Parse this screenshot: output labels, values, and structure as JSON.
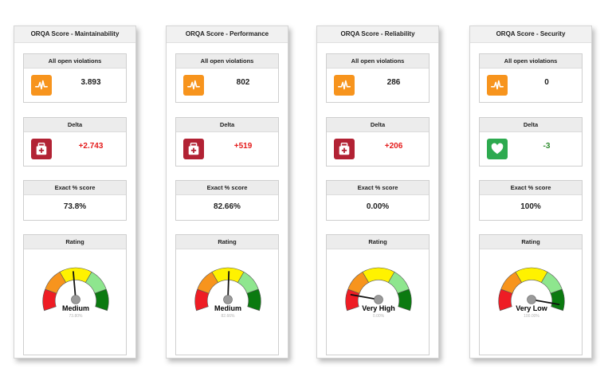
{
  "colors": {
    "orange": "#f7941d",
    "crimson": "#b22234",
    "green": "#2daa4f",
    "delta_bad": "#e41b1b",
    "delta_good": "#2e8b2e",
    "needle": "#111111",
    "faint": "#b4b4b4"
  },
  "panels": [
    {
      "title": "ORQA Score - Maintainability",
      "violations_label": "All open violations",
      "violations_value": "3.893",
      "violations_icon": "pulse-icon",
      "delta_label": "Delta",
      "delta_value": "+2.743",
      "delta_icon": "medical-kit-icon",
      "delta_trend": "bad",
      "score_label": "Exact % score",
      "score_value": "73.8%",
      "rating_label": "Rating",
      "rating_text": "Medium",
      "rating_sub": "73.80%",
      "needle_deg": 95
    },
    {
      "title": "ORQA Score - Performance",
      "violations_label": "All open violations",
      "violations_value": "802",
      "violations_icon": "pulse-icon",
      "delta_label": "Delta",
      "delta_value": "+519",
      "delta_icon": "medical-kit-icon",
      "delta_trend": "bad",
      "score_label": "Exact % score",
      "score_value": "82.66%",
      "rating_label": "Rating",
      "rating_text": "Medium",
      "rating_sub": "82.66%",
      "needle_deg": 88
    },
    {
      "title": "ORQA Score - Reliability",
      "violations_label": "All open violations",
      "violations_value": "286",
      "violations_icon": "pulse-icon",
      "delta_label": "Delta",
      "delta_value": "+206",
      "delta_icon": "medical-kit-icon",
      "delta_trend": "bad",
      "score_label": "Exact % score",
      "score_value": "0.00%",
      "rating_label": "Rating",
      "rating_text": "Very High",
      "rating_sub": "0.00%",
      "needle_deg": 170
    },
    {
      "title": "ORQA Score - Security",
      "violations_label": "All open violations",
      "violations_value": "0",
      "violations_icon": "pulse-icon",
      "delta_label": "Delta",
      "delta_value": "-3",
      "delta_icon": "heart-icon",
      "delta_trend": "good",
      "score_label": "Exact % score",
      "score_value": "100%",
      "rating_label": "Rating",
      "rating_text": "Very Low",
      "rating_sub": "100.00%",
      "needle_deg": -10
    }
  ]
}
